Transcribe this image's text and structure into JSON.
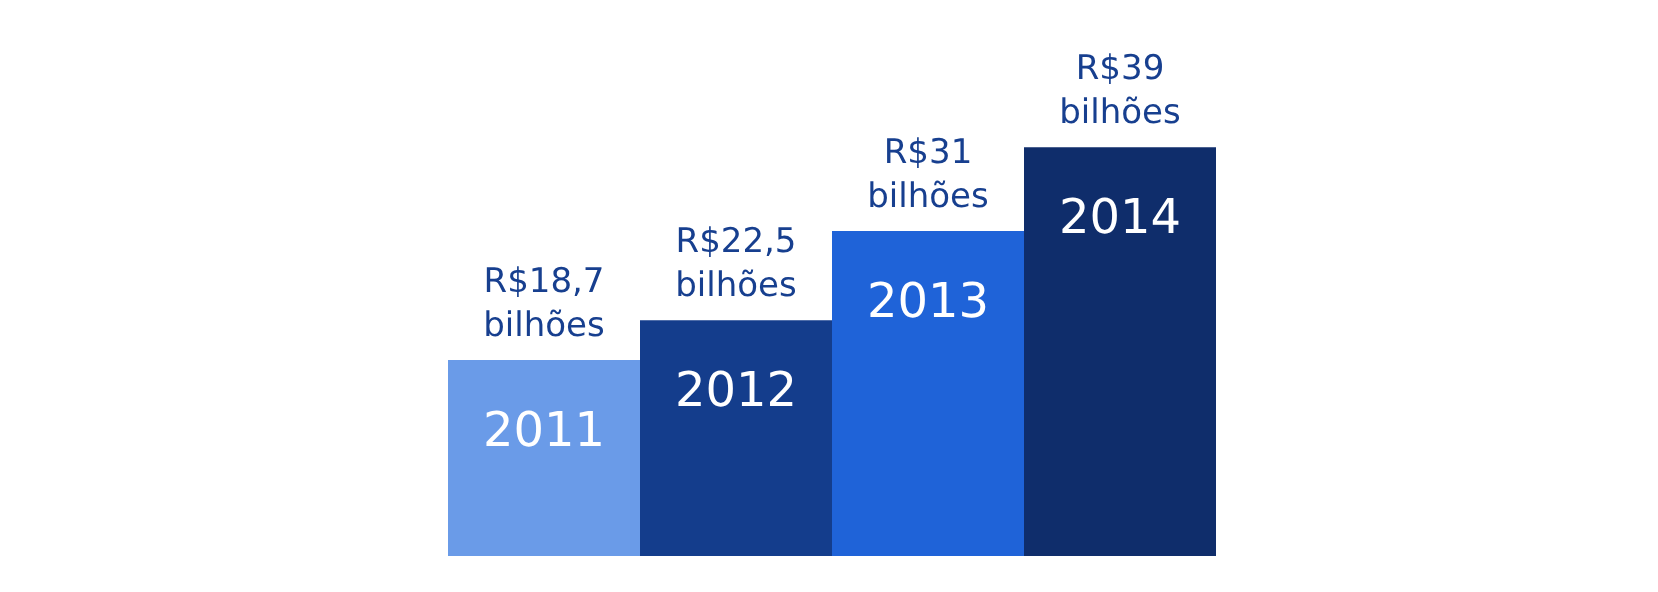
{
  "chart_data": {
    "type": "bar",
    "categories": [
      "2011",
      "2012",
      "2013",
      "2014"
    ],
    "values": [
      18.7,
      22.5,
      31,
      39
    ],
    "colors": [
      "#6a9be8",
      "#143d8c",
      "#1f63d8",
      "#0f2d6b"
    ],
    "value_labels": [
      "R$18,7 bilhões",
      "R$22,5 bilhões",
      "R$31 bilhões",
      "R$39 bilhões"
    ]
  }
}
